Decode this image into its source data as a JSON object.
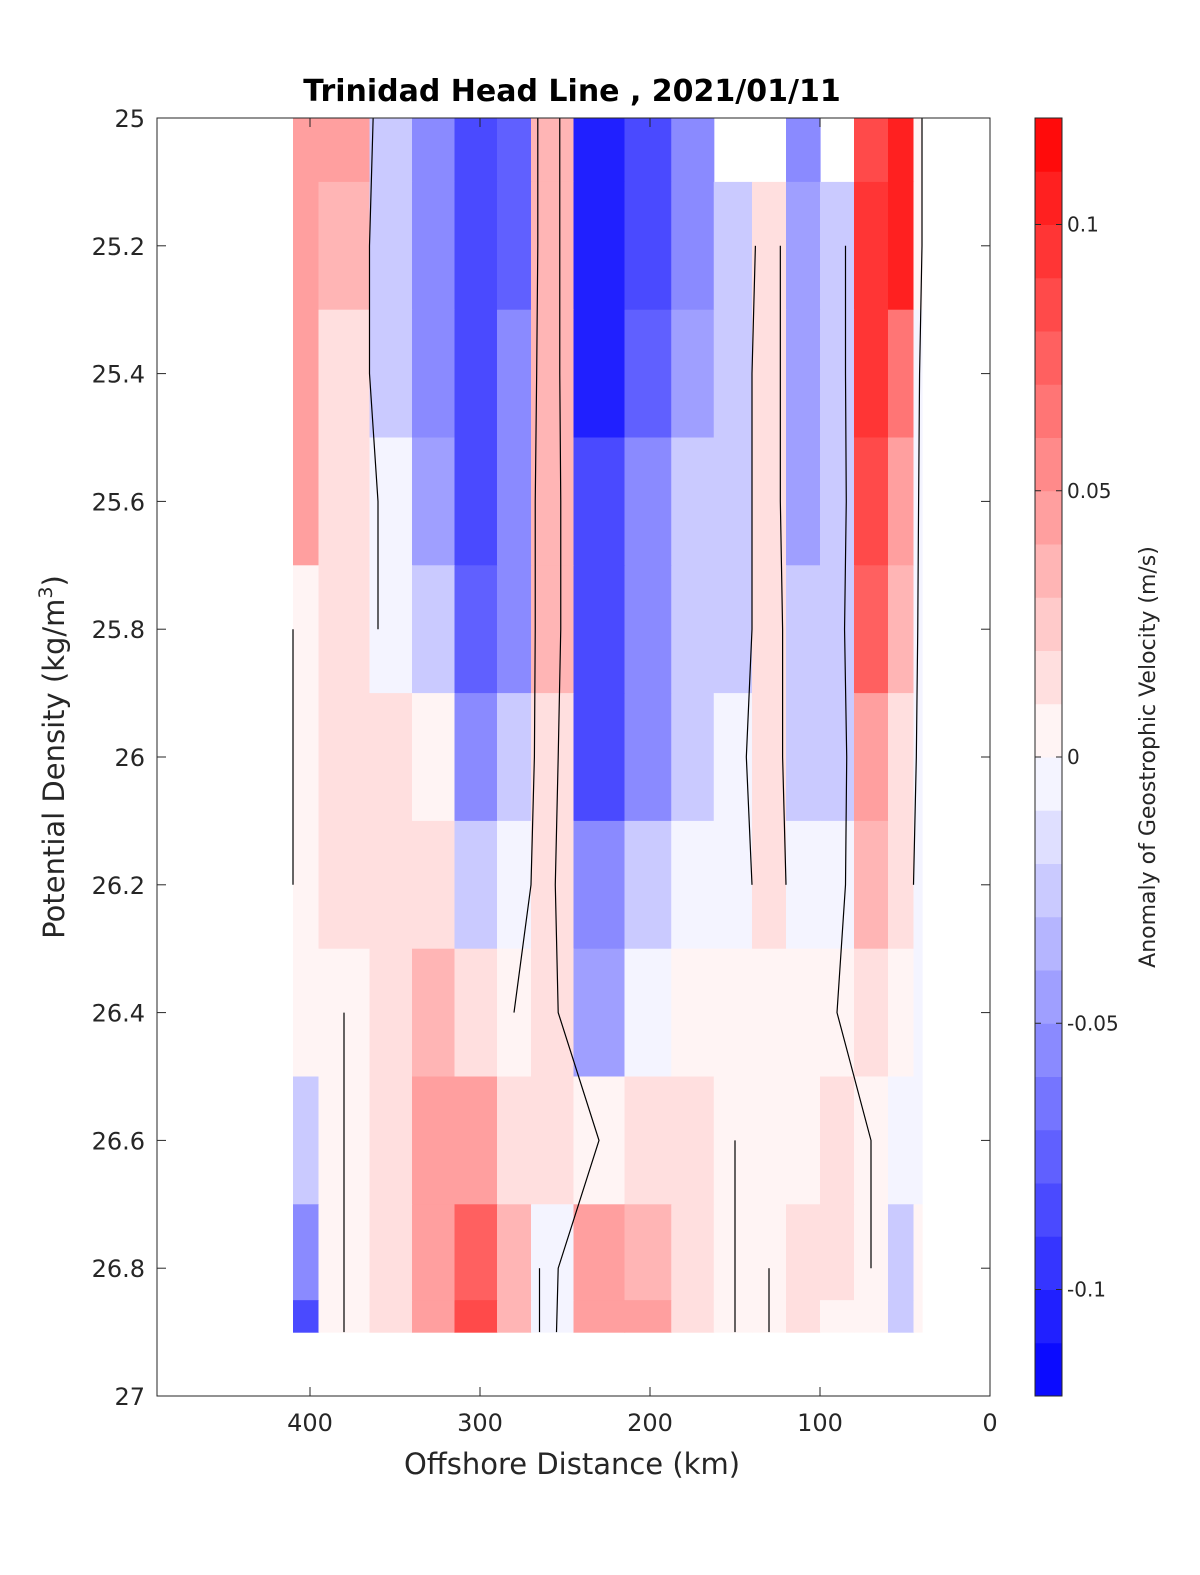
{
  "chart_data": {
    "type": "heatmap",
    "title": "Trinidad Head Line , 2021/01/11",
    "xlabel": "Offshore Distance (km)",
    "ylabel": "Potential Density (kg/m",
    "ylabel_sup": "3",
    "ylabel_close": ")",
    "xlim": [
      490,
      0
    ],
    "ylim": [
      25,
      27
    ],
    "x_ticks": [
      400,
      300,
      200,
      100,
      0
    ],
    "x_tick_labels": [
      "400",
      "300",
      "200",
      "100",
      "0"
    ],
    "y_ticks": [
      25,
      25.2,
      25.4,
      25.6,
      25.8,
      26,
      26.2,
      26.4,
      26.6,
      26.8,
      27
    ],
    "y_tick_labels": [
      "25",
      "25.2",
      "25.4",
      "25.6",
      "25.8",
      "26",
      "26.2",
      "26.4",
      "26.6",
      "26.8",
      "27"
    ],
    "colorbar": {
      "label": "Anomaly of Geostrophic Velocity (m/s)",
      "range": [
        -0.12,
        0.12
      ],
      "levels": 24,
      "ticks": [
        0.1,
        0.05,
        0,
        -0.05,
        -0.1
      ],
      "tick_labels": [
        "0.1",
        "0.05",
        "0",
        "-0.05",
        "-0.1"
      ],
      "colormap": "blue-white-red",
      "negative_color": "#0000ff",
      "positive_color": "#ff0000"
    },
    "zero_contour_color": "#000000",
    "x": [
      410,
      380,
      350,
      330,
      300,
      280,
      260,
      230,
      200,
      175,
      150,
      130,
      110,
      90,
      70,
      50,
      40
    ],
    "y": [
      25.0,
      25.2,
      25.4,
      25.6,
      25.8,
      26.0,
      26.2,
      26.4,
      26.6,
      26.8,
      26.9
    ],
    "values": [
      [
        0.05,
        0.04,
        -0.03,
        -0.06,
        -0.09,
        -0.07,
        0.03,
        -0.1,
        -0.08,
        -0.05,
        null,
        null,
        -0.05,
        null,
        0.08,
        0.1,
        0.0
      ],
      [
        0.05,
        0.03,
        -0.03,
        -0.06,
        -0.09,
        -0.07,
        0.03,
        -0.1,
        -0.08,
        -0.05,
        -0.03,
        0.02,
        -0.04,
        -0.03,
        0.09,
        0.1,
        0.0
      ],
      [
        0.05,
        0.02,
        -0.02,
        -0.06,
        -0.08,
        -0.06,
        0.03,
        -0.1,
        -0.07,
        -0.04,
        -0.02,
        0.02,
        -0.04,
        -0.03,
        0.09,
        0.06,
        -0.01
      ],
      [
        0.04,
        0.02,
        -0.01,
        -0.04,
        -0.08,
        -0.05,
        0.03,
        -0.09,
        -0.06,
        -0.03,
        -0.02,
        0.02,
        -0.04,
        -0.03,
        0.08,
        0.04,
        -0.01
      ],
      [
        0.0,
        0.02,
        -0.01,
        -0.02,
        -0.07,
        -0.05,
        0.03,
        -0.09,
        -0.06,
        -0.02,
        -0.02,
        0.02,
        -0.03,
        -0.02,
        0.07,
        0.03,
        -0.01
      ],
      [
        0.0,
        0.01,
        0.01,
        0.0,
        -0.05,
        -0.03,
        0.02,
        -0.08,
        -0.05,
        -0.02,
        -0.01,
        0.02,
        -0.03,
        -0.02,
        0.05,
        0.02,
        -0.01
      ],
      [
        0.0,
        0.01,
        0.01,
        0.02,
        -0.02,
        -0.01,
        0.01,
        -0.06,
        -0.03,
        -0.01,
        -0.01,
        0.01,
        -0.01,
        -0.01,
        0.03,
        0.01,
        -0.01
      ],
      [
        0.0,
        0.0,
        0.02,
        0.03,
        0.01,
        0.0,
        0.01,
        -0.04,
        -0.01,
        0.0,
        0.0,
        0.0,
        0.0,
        0.0,
        0.01,
        0.0,
        -0.01
      ],
      [
        -0.02,
        0.0,
        0.02,
        0.04,
        0.05,
        0.02,
        0.01,
        0.0,
        0.01,
        0.01,
        0.0,
        0.0,
        0.0,
        0.01,
        0.0,
        -0.01,
        -0.01
      ],
      [
        -0.06,
        0.0,
        0.02,
        0.04,
        0.07,
        0.03,
        -0.01,
        0.04,
        0.03,
        0.01,
        0.0,
        0.0,
        0.01,
        0.01,
        0.0,
        -0.02,
        0.0
      ],
      [
        -0.08,
        0.0,
        0.02,
        0.04,
        0.08,
        0.03,
        -0.01,
        0.05,
        0.04,
        0.01,
        0.0,
        0.0,
        0.01,
        0.0,
        0.0,
        -0.02,
        0.0
      ]
    ]
  }
}
